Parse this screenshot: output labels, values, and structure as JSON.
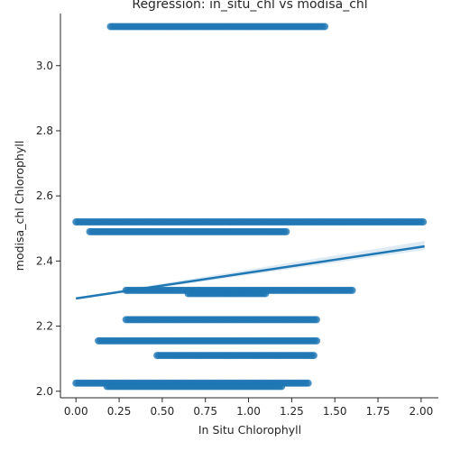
{
  "chart_data": {
    "type": "scatter",
    "title": "Regression: in_situ_chl vs modisa_chl",
    "xlabel": "In Situ Chlorophyll",
    "ylabel": "modisa_chl Chlorophyll",
    "xlim": [
      -0.09,
      2.1
    ],
    "ylim": [
      1.98,
      3.16
    ],
    "x_ticks": [
      "0.00",
      "0.25",
      "0.50",
      "0.75",
      "1.00",
      "1.25",
      "1.50",
      "1.75",
      "2.00"
    ],
    "y_ticks": [
      "2.0",
      "2.2",
      "2.4",
      "2.6",
      "2.8",
      "3.0"
    ],
    "grid": false,
    "color": "#1f77b4",
    "point_bands": [
      {
        "y": 3.12,
        "x_min": 0.2,
        "x_max": 1.45
      },
      {
        "y": 2.52,
        "x_min": 0.0,
        "x_max": 2.02
      },
      {
        "y": 2.49,
        "x_min": 0.08,
        "x_max": 1.22
      },
      {
        "y": 2.31,
        "x_min": 0.29,
        "x_max": 1.61
      },
      {
        "y": 2.3,
        "x_min": 0.65,
        "x_max": 1.1
      },
      {
        "y": 2.22,
        "x_min": 0.29,
        "x_max": 1.4
      },
      {
        "y": 2.155,
        "x_min": 0.13,
        "x_max": 1.4
      },
      {
        "y": 2.11,
        "x_min": 0.47,
        "x_max": 1.38
      },
      {
        "y": 2.025,
        "x_min": 0.0,
        "x_max": 1.35
      },
      {
        "y": 2.015,
        "x_min": 0.18,
        "x_max": 1.2
      }
    ],
    "regression_line": {
      "x": [
        0.0,
        2.02
      ],
      "y": [
        2.285,
        2.445
      ]
    }
  }
}
